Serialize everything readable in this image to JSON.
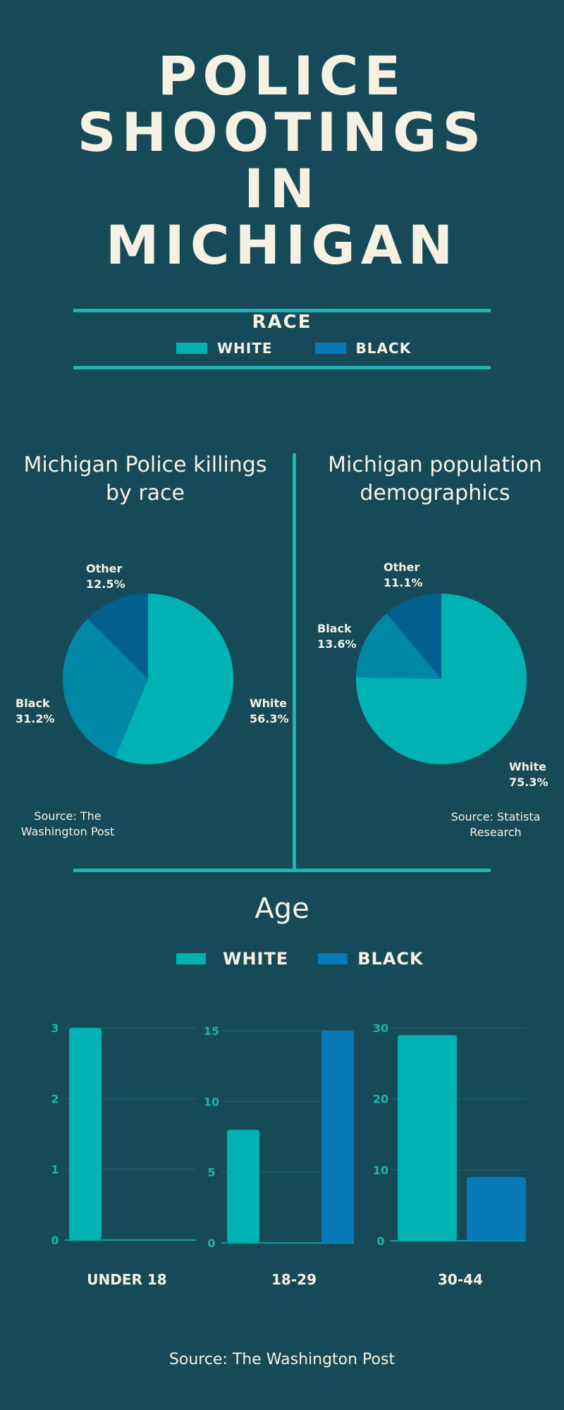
{
  "title_lines": [
    "POLICE",
    "SHOOTINGS",
    "IN",
    "MICHIGAN"
  ],
  "race_section": {
    "heading": "RACE",
    "legend": [
      {
        "label": "WHITE",
        "color": "#00b2b2"
      },
      {
        "label": "BLACK",
        "color": "#0779b7"
      }
    ]
  },
  "colors": {
    "background": "#174a58",
    "accent_rule": "#1db3b3",
    "white": "#00b2b2",
    "black": "#0087a6",
    "other": "#005f8f",
    "bar_black": "#0779b7",
    "text": "#f6f1e3"
  },
  "chart_data": [
    {
      "type": "pie",
      "title": "Michigan Police killings by race",
      "source": "Source: The Washington Post",
      "slices": [
        {
          "label": "White",
          "value": 56.3,
          "text": "56.3%"
        },
        {
          "label": "Black",
          "value": 31.2,
          "text": "31.2%"
        },
        {
          "label": "Other",
          "value": 12.5,
          "text": "12.5%"
        }
      ]
    },
    {
      "type": "pie",
      "title": "Michigan population demographics",
      "source": "Source: Statista Research",
      "slices": [
        {
          "label": "White",
          "value": 75.3,
          "text": "75.3%"
        },
        {
          "label": "Black",
          "value": 13.6,
          "text": "13.6%"
        },
        {
          "label": "Other",
          "value": 11.1,
          "text": "11.1%"
        }
      ]
    },
    {
      "type": "bar",
      "title": "Age",
      "legend": [
        "WHITE",
        "BLACK"
      ],
      "panels": [
        {
          "category": "UNDER 18",
          "ticks": [
            "0",
            "1",
            "2",
            "3"
          ],
          "ylim": [
            0,
            3
          ],
          "white": 3,
          "black": 0
        },
        {
          "category": "18-29",
          "ticks": [
            "0",
            "5",
            "10",
            "15"
          ],
          "ylim": [
            0,
            15
          ],
          "white": 8,
          "black": 15
        },
        {
          "category": "30-44",
          "ticks": [
            "0",
            "10",
            "20",
            "30"
          ],
          "ylim": [
            0,
            30
          ],
          "white": 29,
          "black": 9
        }
      ],
      "source": "Source: The Washington Post"
    }
  ]
}
